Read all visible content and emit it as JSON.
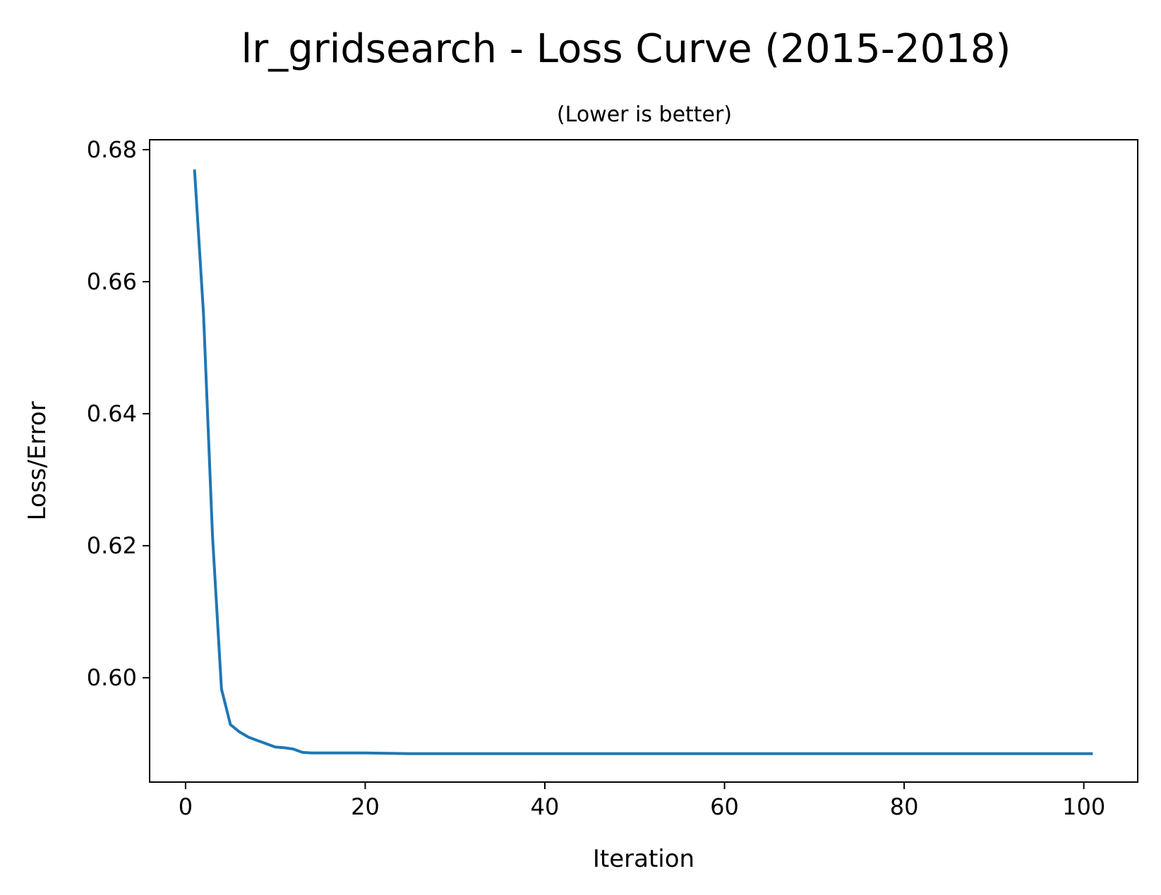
{
  "chart_data": {
    "type": "line",
    "title": "lr_gridsearch - Loss Curve (2015-2018)",
    "subtitle": "(Lower is better)",
    "xlabel": "Iteration",
    "ylabel": "Loss/Error",
    "xlim": [
      -4.0,
      106.0
    ],
    "ylim": [
      0.5842,
      0.6815
    ],
    "xticks": [
      0,
      20,
      40,
      60,
      80,
      100
    ],
    "xtick_labels": [
      "0",
      "20",
      "40",
      "60",
      "80",
      "100"
    ],
    "yticks": [
      0.6,
      0.62,
      0.64,
      0.66,
      0.68
    ],
    "ytick_labels": [
      "0.60",
      "0.62",
      "0.64",
      "0.66",
      "0.68"
    ],
    "grid": false,
    "legend": "none",
    "series": [
      {
        "color": "#1f77b4",
        "x": [
          1,
          2,
          3,
          4,
          5,
          6,
          7,
          8,
          9,
          10,
          11,
          12,
          13,
          14,
          15,
          20,
          25,
          30,
          40,
          50,
          60,
          70,
          80,
          90,
          101
        ],
        "y": [
          0.677,
          0.655,
          0.6215,
          0.5983,
          0.5929,
          0.5918,
          0.591,
          0.5905,
          0.59,
          0.5895,
          0.5894,
          0.5892,
          0.5887,
          0.5886,
          0.5886,
          0.5886,
          0.5885,
          0.5885,
          0.5885,
          0.5885,
          0.5885,
          0.5885,
          0.5885,
          0.5885,
          0.5885
        ]
      }
    ]
  }
}
